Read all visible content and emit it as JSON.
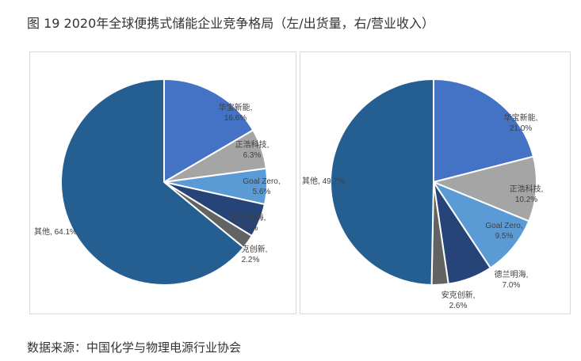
{
  "title": "图 19 2020年全球便携式储能企业竞争格局（左/出货量，右/营业收入）",
  "source": "数据来源：中国化学与物理电源行业协会",
  "chart_data": [
    {
      "type": "pie",
      "unit": "%",
      "categories": [
        "华宝新能",
        "正浩科技",
        "Goal Zero",
        "德兰明海",
        "安克创新",
        "其他"
      ],
      "values": [
        16.6,
        6.3,
        5.6,
        5.3,
        2.2,
        64.1
      ],
      "labels": [
        "16.6%",
        "6.3%",
        "5.6%",
        "5.3%",
        "2.2%",
        "64.1%"
      ],
      "colors": [
        "#4472c4",
        "#a5a5a5",
        "#5b9bd5",
        "#264478",
        "#636363",
        "#255e91"
      ]
    },
    {
      "type": "pie",
      "unit": "%",
      "categories": [
        "华宝新能",
        "正浩科技",
        "Goal Zero",
        "德兰明海",
        "安克创新",
        "其他"
      ],
      "values": [
        21.0,
        10.2,
        9.5,
        7.0,
        2.6,
        49.7
      ],
      "labels": [
        "21.0%",
        "10.2%",
        "9.5%",
        "7.0%",
        "2.6%",
        "49.7%"
      ],
      "colors": [
        "#4472c4",
        "#a5a5a5",
        "#5b9bd5",
        "#264478",
        "#636363",
        "#255e91"
      ]
    }
  ]
}
